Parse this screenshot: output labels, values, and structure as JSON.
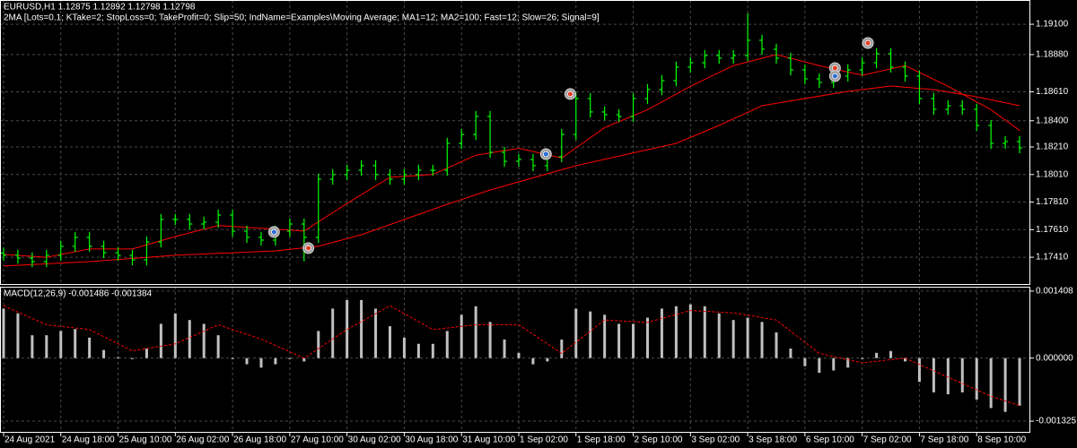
{
  "chart_data": [
    {
      "type": "ohlc",
      "title": "EURUSD,H1  1.12875 1.12892 1.12798 1.12798",
      "subtitle": "2MA [Lots=0.1; KTake=2; StopLoss=0; TakeProfit=0; Slip=50; IndName=Examples\\Moving Average; MA1=12; MA2=100; Fast=12; Slow=26; Signal=9]",
      "color": "#00ff00",
      "open": [
        1.1744,
        1.17424,
        1.17404,
        1.17378,
        1.17424,
        1.17489,
        1.17554,
        1.17489,
        1.17443,
        1.17424,
        1.17391,
        1.17521,
        1.17684,
        1.17684,
        1.17651,
        1.17664,
        1.17716,
        1.17599,
        1.17554,
        1.17534,
        1.17599,
        1.17651,
        1.17554,
        1.17976,
        1.18009,
        1.18041,
        1.18074,
        1.18009,
        1.17976,
        1.18009,
        1.18041,
        1.18041,
        1.18236,
        1.18301,
        1.18431,
        1.18171,
        1.18106,
        1.18119,
        1.18074,
        1.18139,
        1.18301,
        1.18561,
        1.18464,
        1.18444,
        1.18431,
        1.18561,
        1.18626,
        1.18691,
        1.18789,
        1.18821,
        1.18873,
        1.18854,
        1.18873,
        1.18984,
        1.18919,
        1.18854,
        1.18769,
        1.18704,
        1.18678,
        1.18724,
        1.18769,
        1.18821,
        1.18886,
        1.18789,
        1.18724,
        1.18561,
        1.18483,
        1.18509,
        1.18483,
        1.18366,
        1.18236,
        1.18249
      ],
      "high": [
        1.1748,
        1.17464,
        1.17444,
        1.17464,
        1.17529,
        1.17594,
        1.17594,
        1.17529,
        1.17483,
        1.17464,
        1.17561,
        1.17724,
        1.17724,
        1.17724,
        1.17704,
        1.17756,
        1.17756,
        1.17639,
        1.17594,
        1.17639,
        1.17691,
        1.17691,
        1.18016,
        1.18049,
        1.18081,
        1.18114,
        1.18114,
        1.18049,
        1.18049,
        1.18081,
        1.18081,
        1.18276,
        1.18341,
        1.18471,
        1.18471,
        1.18211,
        1.18159,
        1.18159,
        1.18179,
        1.18341,
        1.18601,
        1.18601,
        1.18504,
        1.18484,
        1.18601,
        1.18666,
        1.18731,
        1.18829,
        1.18861,
        1.18913,
        1.18913,
        1.18913,
        1.1918,
        1.19024,
        1.18959,
        1.18894,
        1.18809,
        1.18744,
        1.18764,
        1.18809,
        1.18861,
        1.18926,
        1.18926,
        1.18829,
        1.18764,
        1.18601,
        1.18549,
        1.18549,
        1.18523,
        1.18406,
        1.18289,
        1.18289
      ],
      "low": [
        1.17384,
        1.17364,
        1.17338,
        1.17338,
        1.17384,
        1.17449,
        1.17449,
        1.17403,
        1.17384,
        1.17351,
        1.17351,
        1.17481,
        1.17644,
        1.17611,
        1.17611,
        1.17624,
        1.17559,
        1.17514,
        1.17494,
        1.17494,
        1.17559,
        1.1738,
        1.17514,
        1.17936,
        1.17969,
        1.18001,
        1.17969,
        1.17936,
        1.17936,
        1.17969,
        1.18001,
        1.18001,
        1.18196,
        1.18261,
        1.18131,
        1.18066,
        1.18066,
        1.18034,
        1.18034,
        1.18099,
        1.18261,
        1.18424,
        1.18404,
        1.18391,
        1.18391,
        1.18521,
        1.18586,
        1.18651,
        1.18749,
        1.18781,
        1.18814,
        1.18814,
        1.18833,
        1.18879,
        1.18814,
        1.18729,
        1.18664,
        1.18638,
        1.18638,
        1.18684,
        1.18729,
        1.18781,
        1.18749,
        1.18684,
        1.18521,
        1.18443,
        1.18443,
        1.18443,
        1.18326,
        1.18196,
        1.18196,
        1.18164
      ],
      "close": [
        1.17424,
        1.17404,
        1.17378,
        1.17424,
        1.17489,
        1.17554,
        1.17489,
        1.17443,
        1.17424,
        1.17391,
        1.17521,
        1.17684,
        1.17684,
        1.17651,
        1.17664,
        1.17716,
        1.17599,
        1.17554,
        1.17534,
        1.17599,
        1.17651,
        1.17554,
        1.17976,
        1.18009,
        1.18041,
        1.18074,
        1.18009,
        1.17976,
        1.18009,
        1.18041,
        1.18041,
        1.18236,
        1.18301,
        1.18431,
        1.18171,
        1.18106,
        1.18119,
        1.18074,
        1.18139,
        1.18301,
        1.18561,
        1.18464,
        1.18444,
        1.18431,
        1.18561,
        1.18626,
        1.18691,
        1.18789,
        1.18821,
        1.18873,
        1.18854,
        1.18873,
        1.18984,
        1.18919,
        1.18854,
        1.18769,
        1.18704,
        1.18678,
        1.18724,
        1.18769,
        1.18821,
        1.18886,
        1.18789,
        1.18724,
        1.18561,
        1.18483,
        1.18509,
        1.18483,
        1.18366,
        1.18236,
        1.18249,
        1.18204
      ],
      "lines": [
        {
          "color": "#ff0000",
          "x": [
            0,
            3,
            6,
            9,
            12,
            15,
            18,
            21,
            24,
            27,
            30,
            33,
            36,
            39,
            42,
            45,
            48,
            51,
            54,
            57,
            60,
            63,
            66,
            69,
            71
          ],
          "values": [
            1.1743,
            1.1741,
            1.1747,
            1.1747,
            1.1756,
            1.1764,
            1.1762,
            1.176,
            1.178,
            1.1799,
            1.1801,
            1.1815,
            1.182,
            1.1813,
            1.1835,
            1.1848,
            1.1865,
            1.188,
            1.1888,
            1.188,
            1.1873,
            1.188,
            1.1865,
            1.1848,
            1.1833
          ]
        },
        {
          "color": "#ff0000",
          "x": [
            0,
            6,
            12,
            19,
            22,
            25,
            31,
            34,
            40,
            47,
            50,
            53,
            59,
            62,
            65,
            68,
            71
          ],
          "values": [
            1.17346,
            1.17378,
            1.17424,
            1.17456,
            1.17489,
            1.17573,
            1.17794,
            1.17898,
            1.18074,
            1.18236,
            1.18366,
            1.18509,
            1.18613,
            1.18652,
            1.18626,
            1.18574,
            1.18509
          ]
        }
      ],
      "markers": [
        {
          "x": 18.9,
          "y": 1.17593,
          "color": "#2f6fd6"
        },
        {
          "x": 21.3,
          "y": 1.17476,
          "color": "#e0402a"
        },
        {
          "x": 37.9,
          "y": 1.18158,
          "color": "#2f6fd6"
        },
        {
          "x": 39.6,
          "y": 1.18594,
          "color": "#e0402a"
        },
        {
          "x": 58.1,
          "y": 1.18782,
          "color": "#e0402a"
        },
        {
          "x": 58.1,
          "y": 1.18724,
          "color": "#2f6fd6"
        },
        {
          "x": 60.4,
          "y": 1.18964,
          "color": "#e0402a"
        }
      ],
      "xlim": [
        -0.25,
        71.75
      ],
      "ylim": [
        1.17209,
        1.19276
      ],
      "yticks": [
        {
          "value": 1.191,
          "label": "1.19100"
        },
        {
          "value": 1.1888,
          "label": "1.18880"
        },
        {
          "value": 1.1861,
          "label": "1.18610"
        },
        {
          "value": 1.184,
          "label": "1.18400"
        },
        {
          "value": 1.1821,
          "label": "1.18210"
        },
        {
          "value": 1.1801,
          "label": "1.18010"
        },
        {
          "value": 1.1781,
          "label": "1.17810"
        },
        {
          "value": 1.1761,
          "label": "1.17610"
        },
        {
          "value": 1.1741,
          "label": "1.17410"
        }
      ],
      "grid": true
    },
    {
      "type": "bar",
      "title": "MACD(12,26,9) -0.001486 -0.001384",
      "color": "#c0c0c0",
      "values": [
        0.00104,
        0.00094,
        0.00048,
        0.00048,
        0.00057,
        0.00061,
        0.00043,
        0.00017,
        2e-05,
        -2e-05,
        0.0002,
        0.00072,
        0.00094,
        0.0008,
        0.00072,
        0.00048,
        -2e-05,
        -0.00013,
        -0.0002,
        -0.00013,
        -2e-05,
        -7e-05,
        0.00057,
        0.00104,
        0.00122,
        0.00122,
        0.00104,
        0.00067,
        0.00043,
        0.0003,
        0.0003,
        0.00057,
        0.00091,
        0.00109,
        0.00076,
        0.00039,
        0.00011,
        -0.00013,
        -7e-05,
        0.00039,
        0.00104,
        0.00098,
        0.00091,
        0.00072,
        0.00072,
        0.00085,
        0.00104,
        0.00109,
        0.00113,
        0.00109,
        0.00094,
        0.0008,
        0.00085,
        0.00076,
        0.00054,
        0.0002,
        -0.00017,
        -0.00031,
        -0.00026,
        -0.0002,
        -2e-05,
        0.00011,
        0.00015,
        -7e-05,
        -0.0005,
        -0.00072,
        -0.00076,
        -0.00072,
        -0.00087,
        -0.00105,
        -0.00113,
        -0.001
      ],
      "signal": {
        "color": "#ff0000",
        "x": [
          0,
          3,
          6,
          9,
          12,
          15,
          18,
          21,
          24,
          27,
          30,
          33,
          36,
          39,
          42,
          45,
          48,
          51,
          54,
          57,
          60,
          63,
          66,
          69,
          71
        ],
        "values": [
          0.0011,
          0.0007,
          0.0006,
          0.00015,
          0.0003,
          0.0007,
          0.0004,
          0.0,
          0.0006,
          0.0011,
          0.0006,
          0.0007,
          0.0007,
          0.0001,
          0.0008,
          0.00075,
          0.001,
          0.00095,
          0.0008,
          0.0001,
          -0.0001,
          0.0,
          -0.0004,
          -0.0008,
          -0.001
        ]
      },
      "xlim": [
        -0.25,
        71.75
      ],
      "ylim": [
        -0.00155,
        0.0015
      ],
      "yticks": [
        0.001408,
        {
          "value": 0,
          "label": "0.000000"
        },
        -0.001325
      ],
      "xticks": [
        {
          "value": 0,
          "label": "24 Aug 2021"
        },
        {
          "value": 4,
          "label": "24 Aug 18:00"
        },
        {
          "value": 8,
          "label": "25 Aug 10:00"
        },
        {
          "value": 12,
          "label": "26 Aug 02:00"
        },
        {
          "value": 16,
          "label": "26 Aug 18:00"
        },
        {
          "value": 20,
          "label": "27 Aug 10:00"
        },
        {
          "value": 24,
          "label": "30 Aug 02:00"
        },
        {
          "value": 28,
          "label": "30 Aug 18:00"
        },
        {
          "value": 32,
          "label": "31 Aug 10:00"
        },
        {
          "value": 36,
          "label": "1 Sep 02:00"
        },
        {
          "value": 40,
          "label": "1 Sep 18:00"
        },
        {
          "value": 44,
          "label": "2 Sep 10:00"
        },
        {
          "value": 48,
          "label": "3 Sep 02:00"
        },
        {
          "value": 52,
          "label": "3 Sep 18:00"
        },
        {
          "value": 56,
          "label": "6 Sep 10:00"
        },
        {
          "value": 60,
          "label": "7 Sep 02:00"
        },
        {
          "value": 64,
          "label": "7 Sep 18:00"
        },
        {
          "value": 68,
          "label": "8 Sep 10:00"
        }
      ],
      "grid": true
    }
  ]
}
